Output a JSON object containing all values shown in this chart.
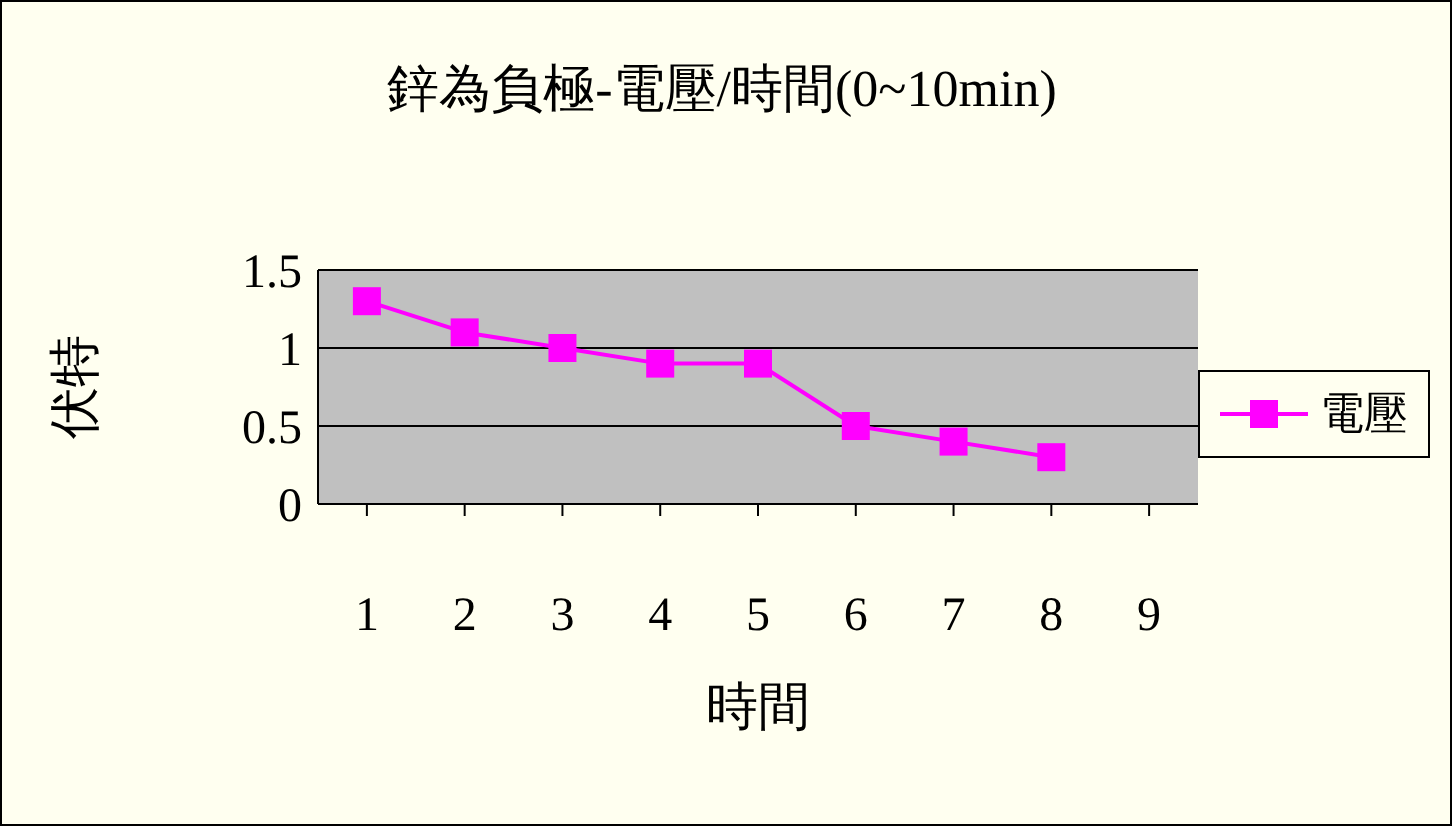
{
  "chart_data": {
    "type": "line",
    "title": "鋅為負極-電壓/時間(0~10min)",
    "xlabel": "時間",
    "ylabel": "伏特",
    "categories": [
      "1",
      "2",
      "3",
      "4",
      "5",
      "6",
      "7",
      "8",
      "9"
    ],
    "series": [
      {
        "name": "電壓",
        "color": "#ff00ff",
        "values": [
          1.3,
          1.1,
          1.0,
          0.9,
          0.9,
          0.5,
          0.4,
          0.3,
          null
        ]
      }
    ],
    "ylim": [
      0,
      1.5
    ],
    "yticks": [
      0,
      0.5,
      1,
      1.5
    ],
    "grid": "y",
    "legend": "right",
    "marker": "square",
    "line_style": "solid"
  }
}
